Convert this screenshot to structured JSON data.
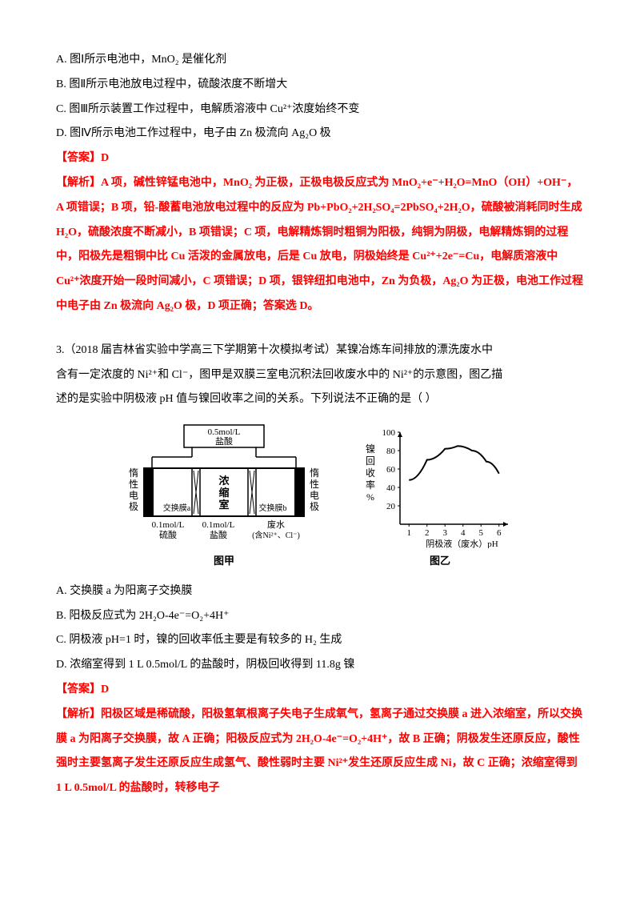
{
  "q2": {
    "options": {
      "A": "A.  图Ⅰ所示电池中，MnO₂ 是催化剂",
      "B": "B.  图Ⅱ所示电池放电过程中，硫酸浓度不断增大",
      "C": "C.  图Ⅲ所示装置工作过程中，电解质溶液中 Cu²⁺浓度始终不变",
      "D": "D.  图Ⅳ所示电池工作过程中，电子由 Zn 极流向 Ag₂O 极"
    },
    "answer_label": "【答案】D",
    "explain": "【解析】A 项，碱性锌锰电池中，MnO₂ 为正极，正极电极反应式为 MnO₂+e⁻+H₂O=MnO（OH）+OH⁻，A 项错误；B 项，铅-酸蓄电池放电过程中的反应为 Pb+PbO₂+2H₂SO₄=2PbSO₄+2H₂O，硫酸被消耗同时生成 H₂O，硫酸浓度不断减小，B 项错误；C 项，电解精炼铜时粗铜为阳极，纯铜为阴极，电解精炼铜的过程中，阳极先是粗铜中比 Cu 活泼的金属放电，后是 Cu 放电，阴极始终是 Cu²⁺+2e⁻=Cu，电解质溶液中 Cu²⁺浓度开始一段时间减小，C 项错误；D 项，银锌纽扣电池中，Zn 为负极，Ag₂O 为正极，电池工作过程中电子由 Zn 极流向 Ag₂O 极，D 项正确；答案选 D。"
  },
  "q3": {
    "stem1": "3.（2018 届吉林省实验中学高三下学期第十次模拟考试）某镍冶炼车间排放的漂洗废水中",
    "stem2": "含有一定浓度的 Ni²⁺和 Cl⁻，图甲是双膜三室电沉积法回收废水中的 Ni²⁺的示意图，图乙描",
    "stem3": "述的是实验中阴极液 pH 值与镍回收率之间的关系。下列说法不正确的是（    ）",
    "diagram": {
      "jia": {
        "title": "图甲",
        "top_label": "0.5mol/L\n盐酸",
        "left_vert": "惰性电极",
        "right_vert": "惰性电极",
        "center_top": "浓缩室",
        "mem_a": "交换膜a",
        "mem_b": "交换膜b",
        "bottom_l1": "0.1mol/L",
        "bottom_l2": "硫酸",
        "bottom_m1": "0.1mol/L",
        "bottom_m2": "盐酸",
        "bottom_r1": "废水",
        "bottom_r2": "(含Ni²⁺、Cl⁻)",
        "colors": {
          "stroke": "#000000",
          "fill": "#ffffff"
        }
      },
      "yi": {
        "title": "图乙",
        "y_label": "镍回收率%",
        "x_label": "阴极液（废水）pH",
        "y_ticks": [
          20,
          40,
          60,
          80,
          100
        ],
        "x_ticks": [
          1,
          2,
          3,
          4,
          5,
          6
        ],
        "curve_pts": [
          [
            1,
            48
          ],
          [
            2,
            70
          ],
          [
            3,
            82
          ],
          [
            3.7,
            85
          ],
          [
            4.5,
            80
          ],
          [
            5.3,
            68
          ],
          [
            6,
            55
          ]
        ],
        "colors": {
          "axis": "#000000",
          "curve": "#000000"
        }
      }
    },
    "options": {
      "A": "A.  交换膜 a 为阳离子交换膜",
      "B": "B.  阳极反应式为 2H₂O-4e⁻=O₂+4H⁺",
      "C": "C.  阴极液 pH=1 时，镍的回收率低主要是有较多的 H₂ 生成",
      "D": "D.  浓缩室得到 1 L 0.5mol/L 的盐酸时，阴极回收得到 11.8g 镍"
    },
    "answer_label": "【答案】D",
    "explain": "【解析】阳极区域是稀硫酸，阳极氢氧根离子失电子生成氧气，氢离子通过交换膜 a 进入浓缩室，所以交换膜 a 为阳离子交换膜，故 A 正确；阳极反应式为 2H₂O-4e⁻=O₂+4H⁺，故 B 正确；阴极发生还原反应，酸性强时主要氢离子发生还原反应生成氢气、酸性弱时主要 Ni²⁺发生还原反应生成 Ni，故 C 正确；浓缩室得到 1  L  0.5mol/L 的盐酸时，转移电子"
  }
}
